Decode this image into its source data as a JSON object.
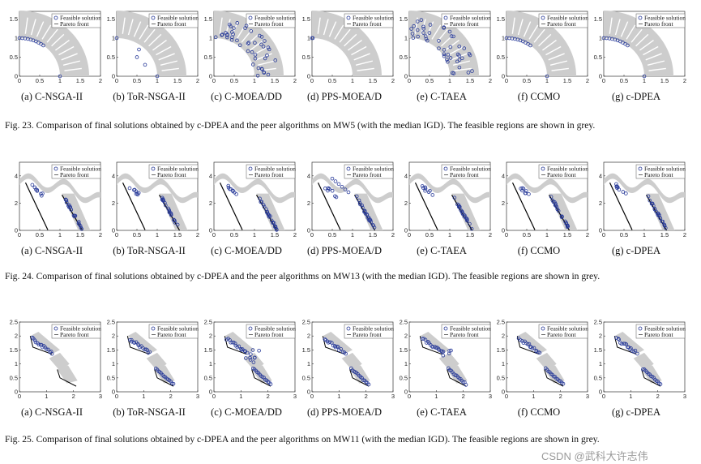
{
  "figures": [
    {
      "id": "fig23",
      "problem": "MW5",
      "caption": "Fig. 23.  Comparison of final solutions obtained by c-DPEA and the peer algorithms on MW5 (with the median IGD). The feasible regions are shown in grey.",
      "legend": [
        "Feasible solution",
        "Pareto front"
      ],
      "xticks": [
        "0",
        "0.5",
        "1",
        "1.5",
        "2"
      ],
      "yticks": [
        "0",
        "0.5",
        "1",
        "1.5"
      ],
      "panels": [
        {
          "label": "(a) C-NSGA-II"
        },
        {
          "label": "(b) ToR-NSGA-II"
        },
        {
          "label": "(c) C-MOEA/DD"
        },
        {
          "label": "(d) PPS-MOEA/D"
        },
        {
          "label": "(e) C-TAEA"
        },
        {
          "label": "(f) CCMO"
        },
        {
          "label": "(g) c-DPEA"
        }
      ]
    },
    {
      "id": "fig24",
      "problem": "MW13",
      "caption": "Fig. 24.  Comparison of final solutions obtained by c-DPEA and the peer algorithms on MW13 (with the median IGD). The feasible regions are shown in grey.",
      "legend": [
        "Feasible solution",
        "Pareto front"
      ],
      "xticks": [
        "0",
        "0.5",
        "1",
        "1.5",
        "2"
      ],
      "yticks": [
        "0",
        "2",
        "4"
      ],
      "panels": [
        {
          "label": "(a) C-NSGA-II"
        },
        {
          "label": "(b) ToR-NSGA-II"
        },
        {
          "label": "(c) C-MOEA/DD"
        },
        {
          "label": "(d) PPS-MOEA/D"
        },
        {
          "label": "(e) C-TAEA"
        },
        {
          "label": "(f) CCMO"
        },
        {
          "label": "(g) c-DPEA"
        }
      ]
    },
    {
      "id": "fig25",
      "problem": "MW11",
      "caption": "Fig. 25.  Comparison of final solutions obtained by c-DPEA and the peer algorithms on MW11 (with the median IGD). The feasible regions are shown in grey.",
      "legend": [
        "Feasible solution",
        "Pareto front"
      ],
      "xticks": [
        "0",
        "1",
        "2",
        "3"
      ],
      "yticks": [
        "0",
        "0.5",
        "1",
        "1.5",
        "2",
        "2.5"
      ],
      "panels": [
        {
          "label": "(a) C-NSGA-II"
        },
        {
          "label": "(b) ToR-NSGA-II"
        },
        {
          "label": "(c) C-MOEA/DD"
        },
        {
          "label": "(d) PPS-MOEA/D"
        },
        {
          "label": "(e) C-TAEA"
        },
        {
          "label": "(f) CCMO"
        },
        {
          "label": "(g) c-DPEA"
        }
      ]
    }
  ],
  "watermark": "CSDN @武科大许志伟"
}
